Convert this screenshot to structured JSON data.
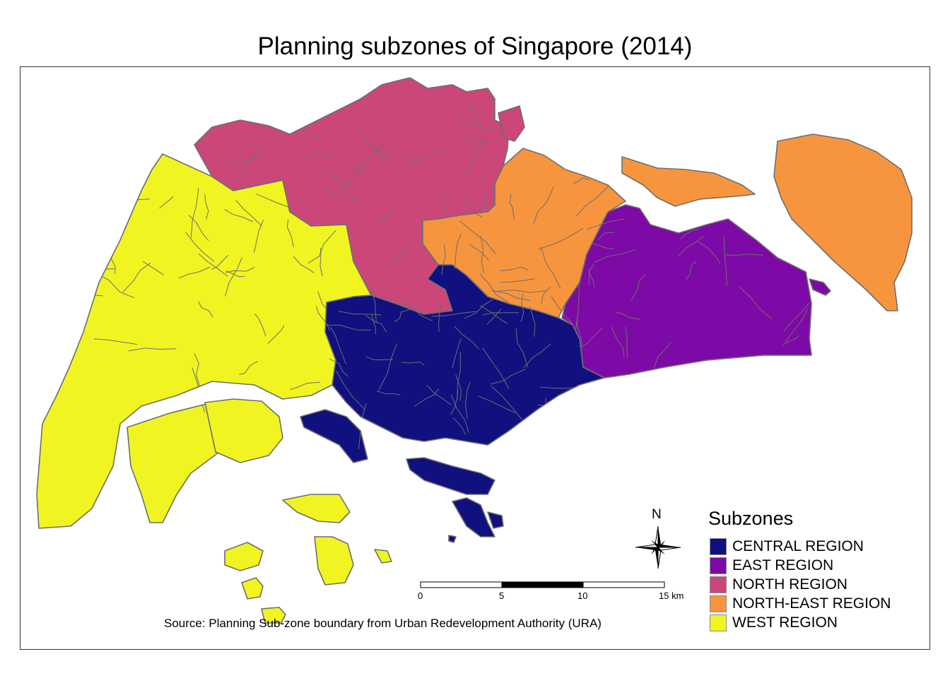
{
  "title": "Planning subzones of Singapore (2014)",
  "legend": {
    "title": "Subzones",
    "items": [
      {
        "label": "CENTRAL REGION",
        "color": "#10107f"
      },
      {
        "label": "EAST REGION",
        "color": "#7d0aa6"
      },
      {
        "label": "NORTH REGION",
        "color": "#cb4779"
      },
      {
        "label": "NORTH-EAST REGION",
        "color": "#f7953f"
      },
      {
        "label": "WEST REGION",
        "color": "#f0f521"
      }
    ]
  },
  "scale_bar": {
    "ticks": [
      "0",
      "5",
      "10",
      "15 km"
    ]
  },
  "north_arrow": {
    "label": "N"
  },
  "source": "Source: Planning Sub-zone boundary from Urban Redevelopment Authority (URA)",
  "colors": {
    "boundary": "#6e6e6e",
    "central": "#10107f",
    "east": "#7d0aa6",
    "north": "#cb4779",
    "northeast": "#f7953f",
    "west": "#f0f521"
  }
}
